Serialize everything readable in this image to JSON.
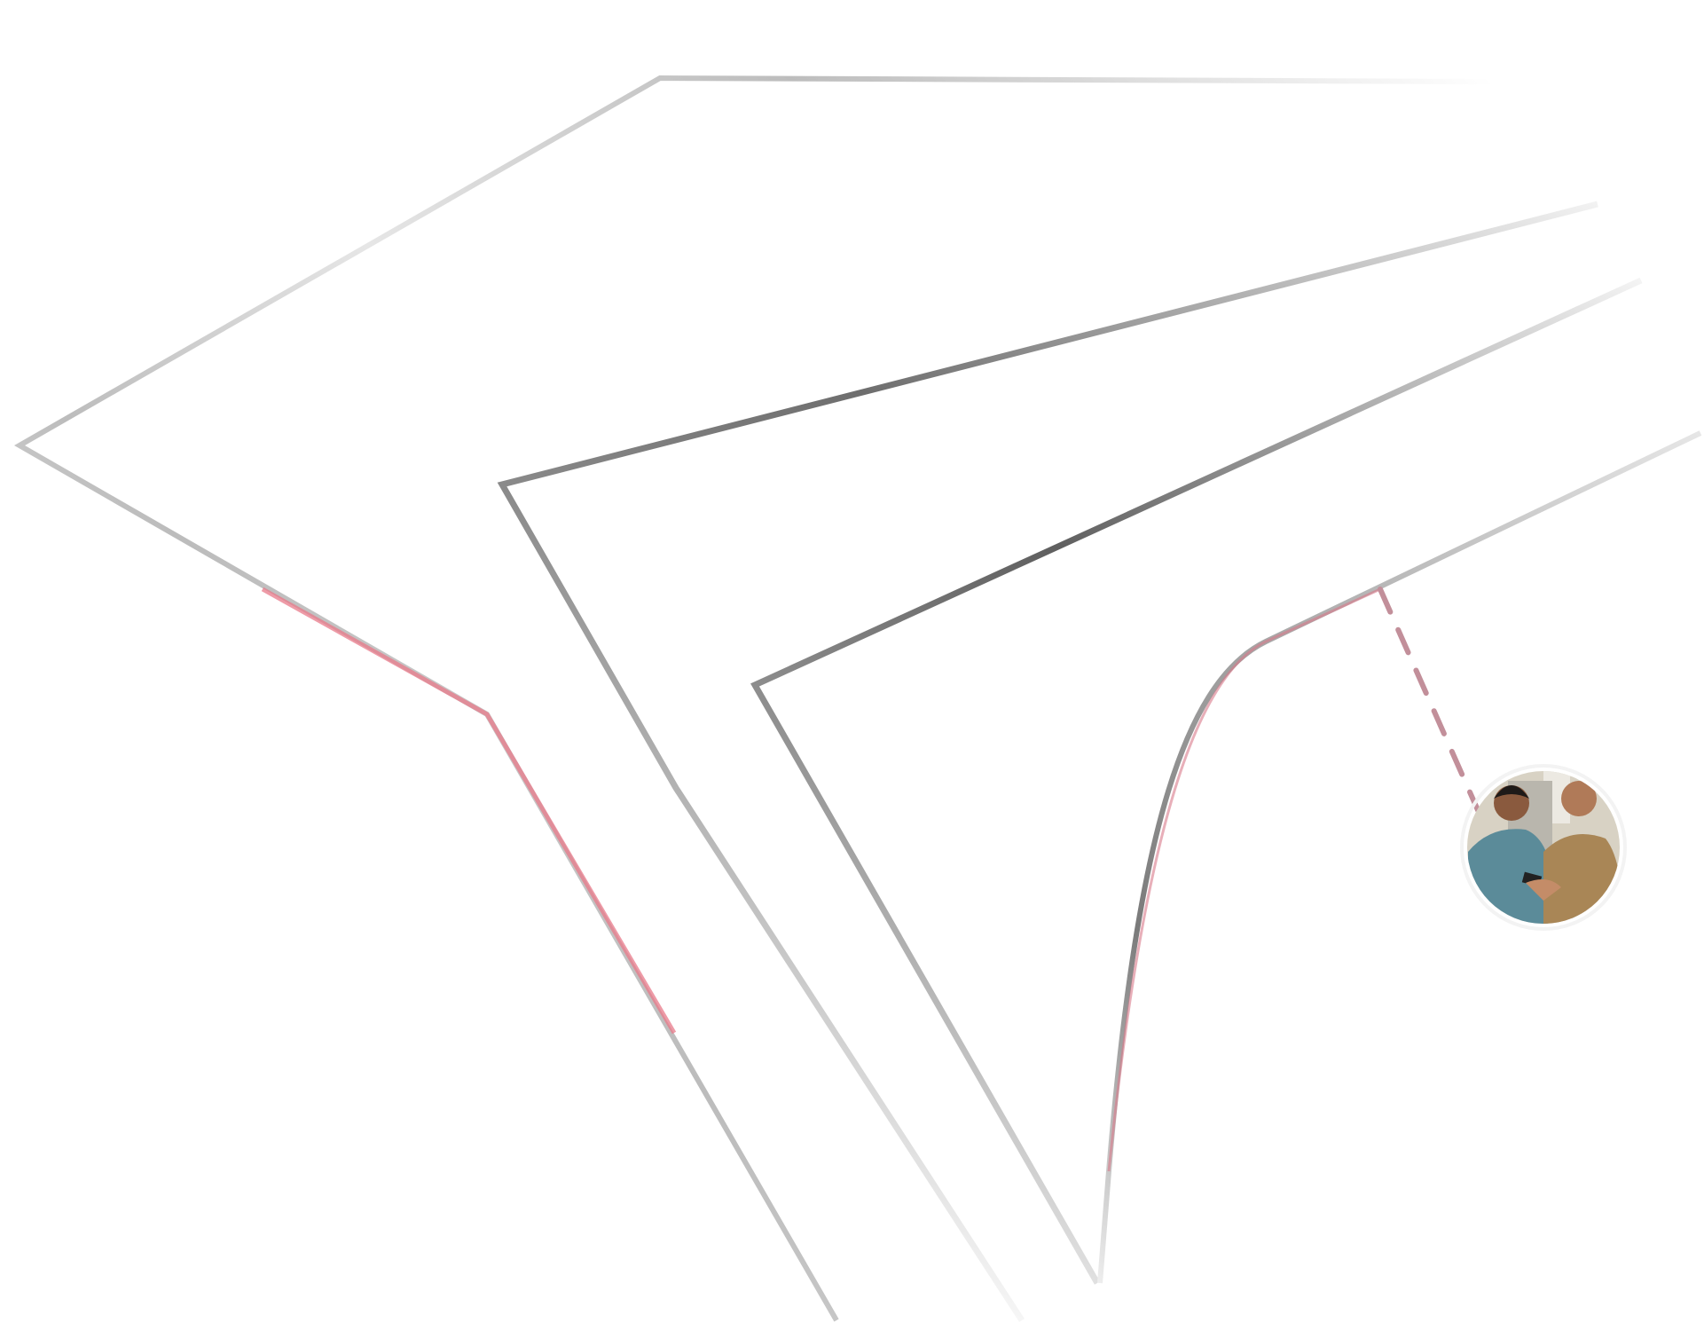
{
  "colors": {
    "background": "#ffffff",
    "line_dark": "#6a6a6a",
    "line_light": "#d0d0d0",
    "highlight": "#e8798a",
    "dashed_connector": "#c28f9a"
  },
  "illustration": {
    "photo_icon": "people-in-car-photo",
    "connector_style": "dashed"
  }
}
